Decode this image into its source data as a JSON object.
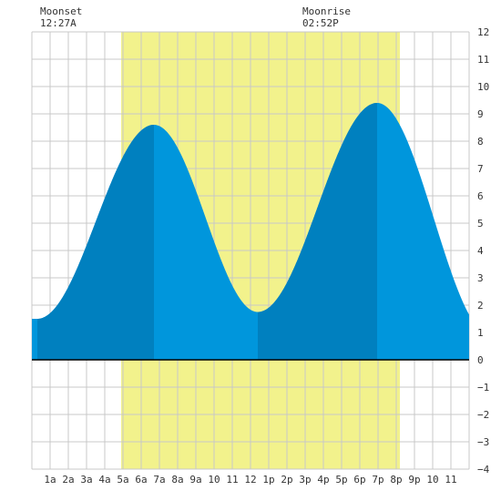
{
  "chart_data": {
    "type": "area",
    "title": "",
    "xlabel": "",
    "ylabel": "",
    "xlim": [
      0,
      24
    ],
    "ylim": [
      -4,
      12
    ],
    "y_ticks": [
      -4,
      -3,
      -2,
      -1,
      0,
      1,
      2,
      3,
      4,
      5,
      6,
      7,
      8,
      9,
      10,
      11,
      12
    ],
    "x_tick_labels": [
      "1a",
      "2a",
      "3a",
      "4a",
      "5a",
      "6a",
      "7a",
      "8a",
      "9a",
      "10",
      "11",
      "12",
      "1p",
      "2p",
      "3p",
      "4p",
      "5p",
      "6p",
      "7p",
      "8p",
      "9p",
      "10",
      "11"
    ],
    "grid": true,
    "daylight": {
      "start_hour": 4.9,
      "end_hour": 20.2,
      "color": "#f2f28c"
    },
    "annotations": {
      "moonset": {
        "label": "Moonset",
        "time": "12:27A"
      },
      "moonrise": {
        "label": "Moonrise",
        "time": "02:52P"
      }
    },
    "colors": {
      "tide_light": "#0096dc",
      "tide_dark": "#0080bf",
      "grid": "#c8c8c8",
      "zero_line": "#000000"
    },
    "tide_extremes": [
      {
        "hour": 0.3,
        "height": 1.5,
        "kind": "low"
      },
      {
        "hour": 6.7,
        "height": 8.6,
        "kind": "high"
      },
      {
        "hour": 12.4,
        "height": 1.75,
        "kind": "low"
      },
      {
        "hour": 18.95,
        "height": 9.4,
        "kind": "high"
      },
      {
        "hour": 25.2,
        "height": 0.9,
        "kind": "low"
      }
    ],
    "dark_bands": [
      [
        0.3,
        6.7
      ],
      [
        12.4,
        18.95
      ]
    ]
  }
}
